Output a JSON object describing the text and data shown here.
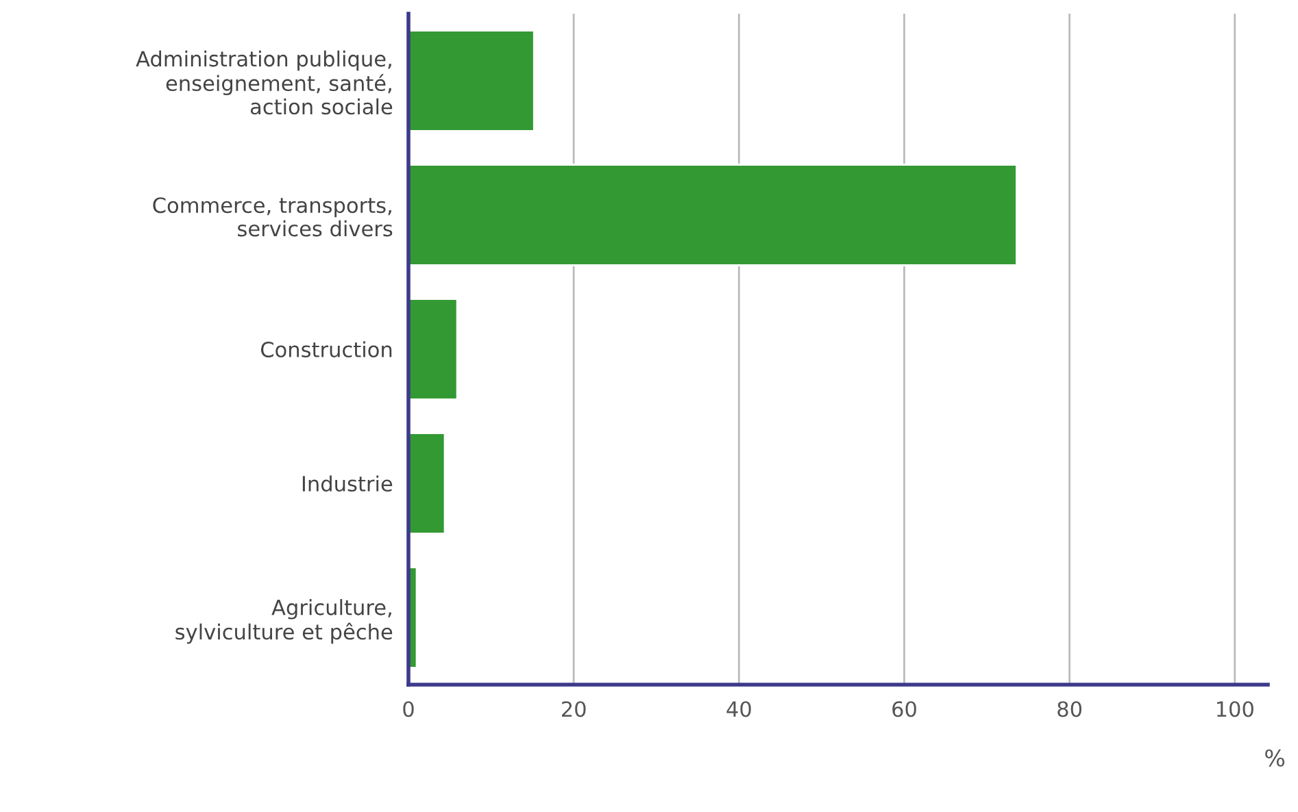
{
  "chart_data": {
    "type": "bar",
    "orientation": "horizontal",
    "categories": [
      "Administration publique,\nenseignement, santé,\naction sociale",
      "Commerce, transports,\nservices divers",
      "Construction",
      "Industrie",
      "Agriculture,\nsylviculture et pêche"
    ],
    "values": [
      15.2,
      73.6,
      5.9,
      4.4,
      1.0
    ],
    "color": "#339933",
    "xlim": [
      0,
      104
    ],
    "xticks": [
      0,
      20,
      40,
      60,
      80,
      100
    ],
    "xlabel": "%",
    "grid": "x"
  }
}
